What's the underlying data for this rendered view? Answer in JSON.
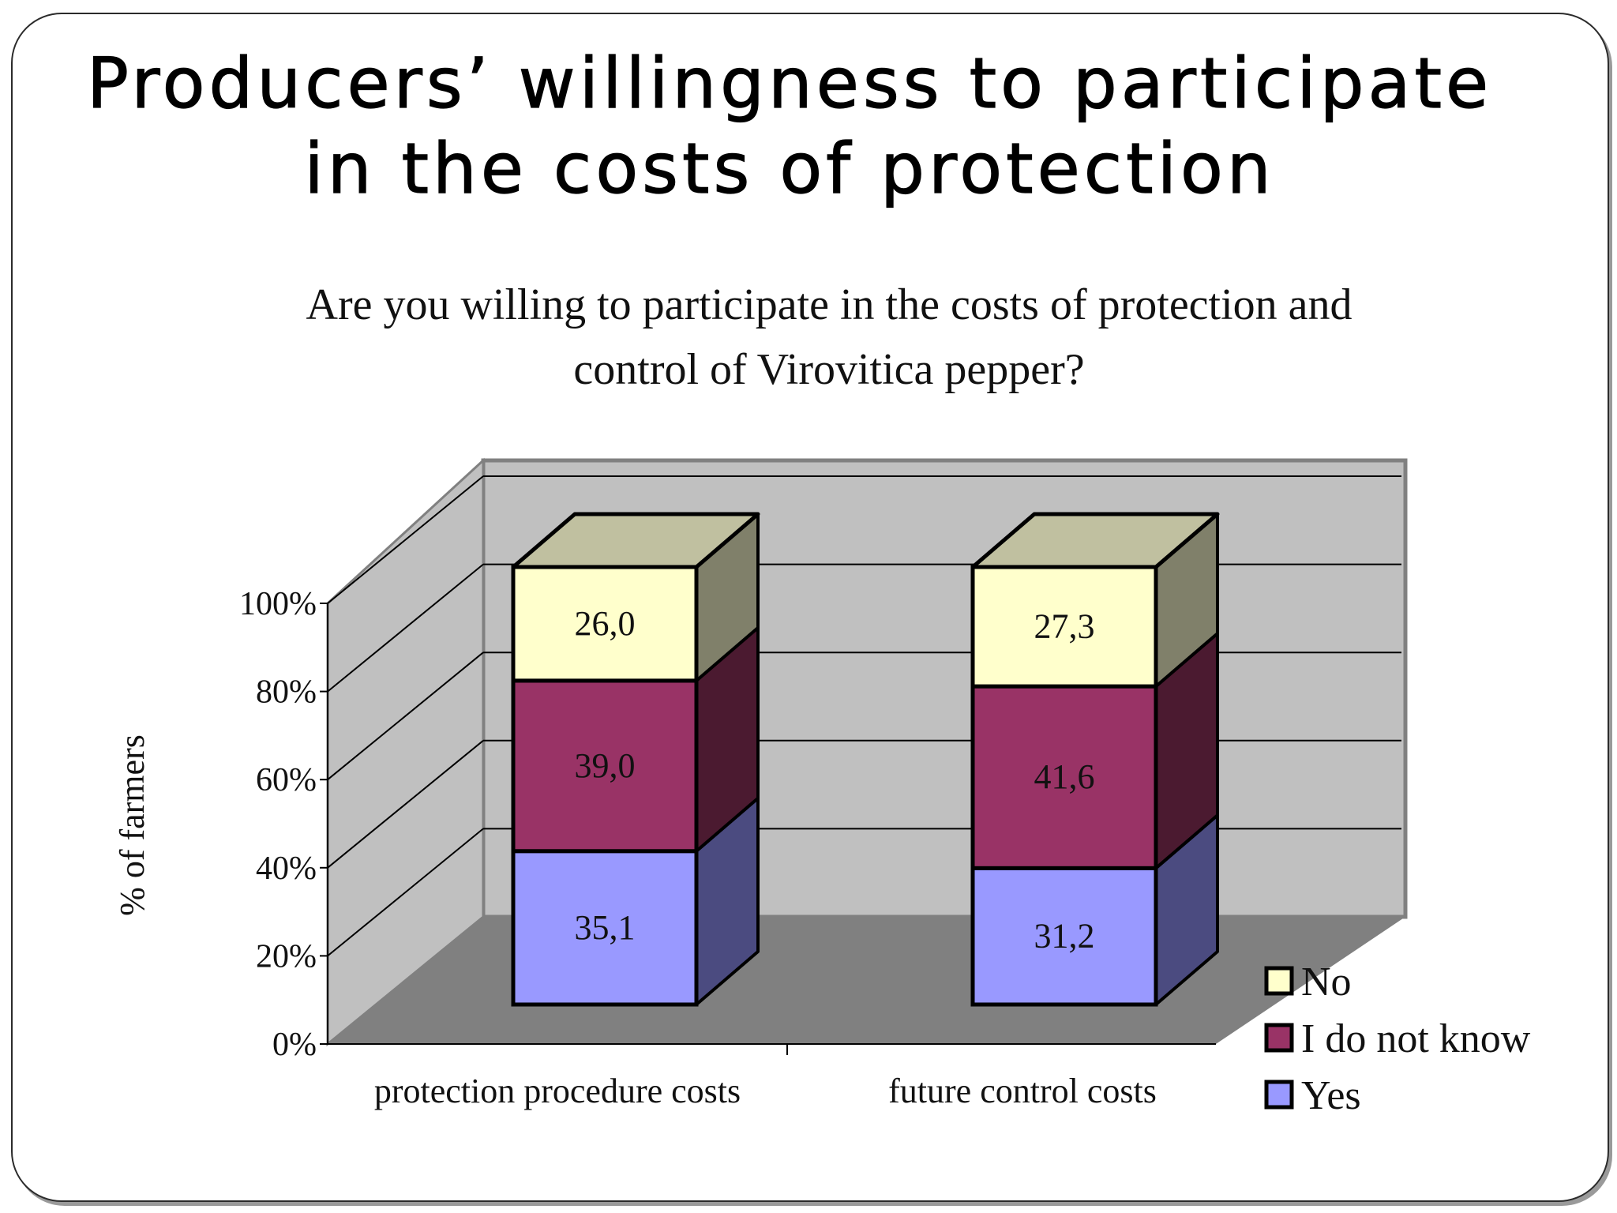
{
  "slide": {
    "title": "Producers’ willingness to participate in the costs of protection"
  },
  "chart_data": {
    "type": "bar",
    "stacked": true,
    "percent_stacked": true,
    "three_d": true,
    "title": "Are you willing to participate in the costs of protection and control of Virovitica pepper?",
    "categories": [
      "protection procedure costs",
      "future control costs"
    ],
    "series": [
      {
        "name": "Yes",
        "values": [
          35.1,
          31.2
        ],
        "labels": [
          "35,1",
          "31,2"
        ],
        "color": "#9999ff",
        "side_color": "#4b4b80"
      },
      {
        "name": "I do not know",
        "values": [
          39.0,
          41.6
        ],
        "labels": [
          "39,0",
          "41,6"
        ],
        "color": "#993366",
        "side_color": "#4b1a30"
      },
      {
        "name": "No",
        "values": [
          26.0,
          27.3
        ],
        "labels": [
          "26,0",
          "27,3"
        ],
        "color": "#ffffcc",
        "side_color": "#80806a"
      }
    ],
    "ylabel": "% of farmers",
    "xlabel": "",
    "ylim": [
      0,
      100
    ],
    "yticks": [
      "0%",
      "20%",
      "40%",
      "60%",
      "80%",
      "100%"
    ],
    "grid": true,
    "legend": {
      "position": "bottom-right",
      "order": [
        "No",
        "I do not know",
        "Yes"
      ]
    },
    "colors": {
      "wall": "#c0c0c0",
      "floor": "#808080",
      "top_face": "#c0c0a0"
    }
  }
}
